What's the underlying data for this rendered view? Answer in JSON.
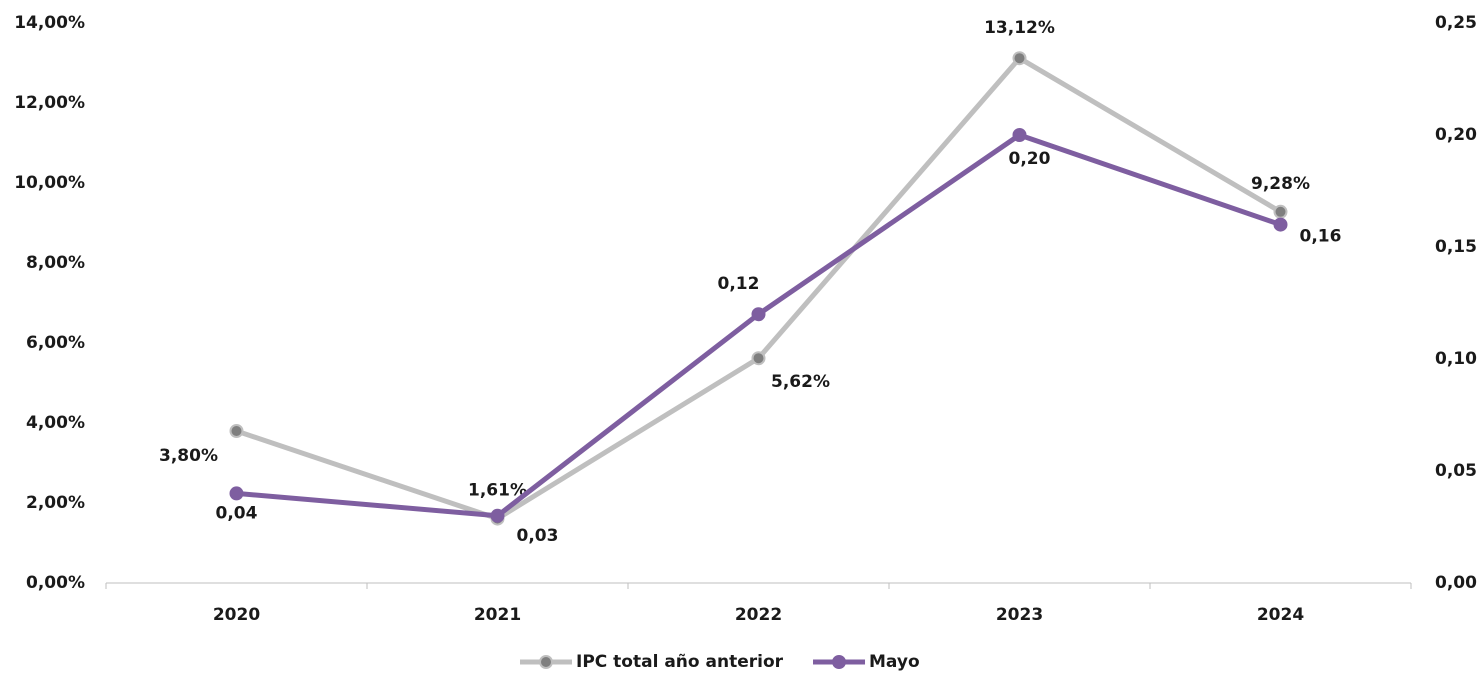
{
  "chart_data": {
    "type": "line",
    "categories": [
      "2020",
      "2021",
      "2022",
      "2023",
      "2024"
    ],
    "series": [
      {
        "name": "IPC total año anterior",
        "color": "#bfbfbf",
        "marker_color": "#7f7f7f",
        "values": [
          3.8,
          1.61,
          5.62,
          13.12,
          9.28
        ],
        "value_labels": [
          "3,80%",
          "1,61%",
          "5,62%",
          "13,12%",
          "9,28%"
        ]
      },
      {
        "name": "Mayo",
        "color": "#7e5ea0",
        "marker_color": "#7e5ea0",
        "axis": "y2",
        "values": [
          0.04,
          0.03,
          0.12,
          0.2,
          0.16
        ],
        "value_labels": [
          "0,04",
          "0,03",
          "0,12",
          "0,20",
          "0,16"
        ]
      }
    ],
    "ylim": [
      0,
      14
    ],
    "yticks": [
      {
        "value": 0,
        "label": "0,00%"
      },
      {
        "value": 2,
        "label": "2,00%"
      },
      {
        "value": 4,
        "label": "4,00%"
      },
      {
        "value": 6,
        "label": "6,00%"
      },
      {
        "value": 8,
        "label": "8,00%"
      },
      {
        "value": 10,
        "label": "10,00%"
      },
      {
        "value": 12,
        "label": "12,00%"
      },
      {
        "value": 14,
        "label": "14,00%"
      }
    ],
    "y2lim": [
      0,
      0.25
    ],
    "y2ticks": [
      {
        "value": 0,
        "label": "0,00"
      },
      {
        "value": 0.05,
        "label": "0,05"
      },
      {
        "value": 0.1,
        "label": "0,10"
      },
      {
        "value": 0.15,
        "label": "0,15"
      },
      {
        "value": 0.2,
        "label": "0,20"
      },
      {
        "value": 0.25,
        "label": "0,25"
      }
    ],
    "grid": false,
    "legend": "bottom"
  }
}
